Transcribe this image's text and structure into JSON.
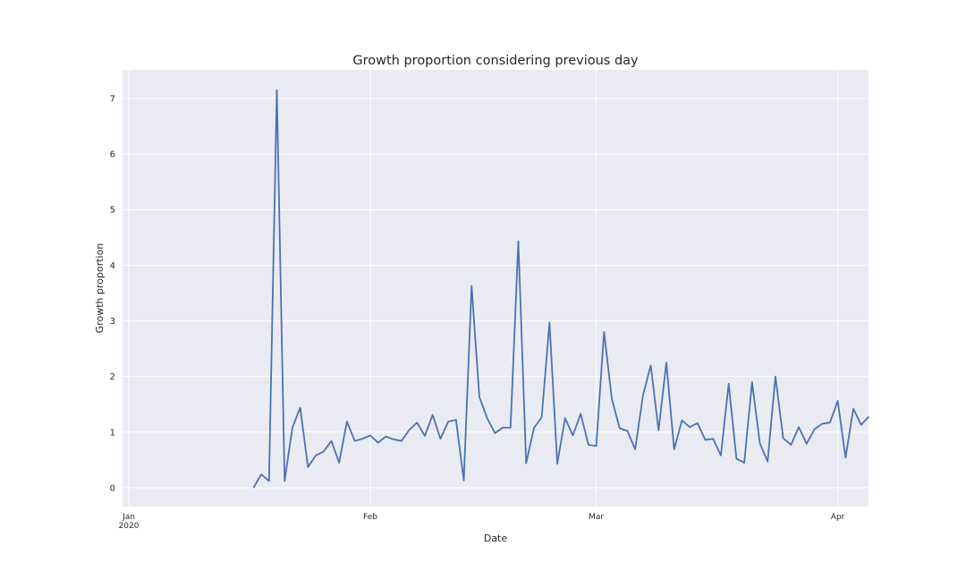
{
  "chart_data": {
    "type": "line",
    "title": "Growth proportion considering previous day",
    "x_label": "Date",
    "y_label": "Growth proportion",
    "categories": [
      "Jan\n2020",
      null,
      null,
      null,
      null,
      null,
      null,
      null,
      null,
      null,
      null,
      null,
      null,
      null,
      null,
      null,
      null,
      null,
      null,
      null,
      null,
      null,
      null,
      null,
      null,
      null,
      null,
      null,
      null,
      null,
      null,
      "Feb",
      null,
      null,
      null,
      null,
      null,
      null,
      null,
      null,
      null,
      null,
      null,
      null,
      null,
      null,
      null,
      null,
      null,
      null,
      null,
      null,
      null,
      null,
      null,
      null,
      null,
      null,
      null,
      null,
      "Mar",
      null,
      null,
      null,
      null,
      null,
      null,
      null,
      null,
      null,
      null,
      null,
      null,
      null,
      null,
      null,
      null,
      null,
      null,
      null,
      null,
      null,
      null,
      null,
      null,
      null,
      null,
      null,
      null,
      null,
      null,
      "Apr",
      null,
      null,
      null,
      null
    ],
    "series": [
      {
        "name": "Growth proportion",
        "color": "#4c72b0",
        "values": [
          null,
          null,
          null,
          null,
          null,
          null,
          null,
          null,
          null,
          null,
          null,
          null,
          null,
          null,
          null,
          null,
          0,
          0.24,
          0.12,
          7.15,
          0.12,
          1.08,
          1.44,
          0.37,
          0.58,
          0.65,
          0.84,
          0.45,
          1.19,
          0.84,
          0.88,
          0.94,
          0.81,
          0.92,
          0.87,
          0.84,
          1.04,
          1.17,
          0.93,
          1.31,
          0.88,
          1.19,
          1.22,
          0.13,
          3.63,
          1.63,
          1.25,
          0.98,
          1.08,
          1.08,
          4.43,
          0.44,
          1.07,
          1.27,
          2.97,
          0.43,
          1.25,
          0.94,
          1.33,
          0.77,
          0.75,
          2.8,
          1.6,
          1.07,
          1.02,
          0.69,
          1.66,
          2.2,
          1.03,
          2.25,
          0.69,
          1.21,
          1.09,
          1.16,
          0.86,
          0.88,
          0.58,
          1.87,
          0.52,
          0.45,
          1.9,
          0.8,
          0.47,
          2.0,
          0.89,
          0.77,
          1.09,
          0.79,
          1.05,
          1.15,
          1.17,
          1.56,
          0.54,
          1.42,
          1.13,
          1.28
        ]
      }
    ],
    "ylim": [
      -0.34,
      7.515
    ],
    "yticks": [
      0,
      1,
      2,
      3,
      4,
      5,
      6,
      7
    ],
    "grid": true
  }
}
